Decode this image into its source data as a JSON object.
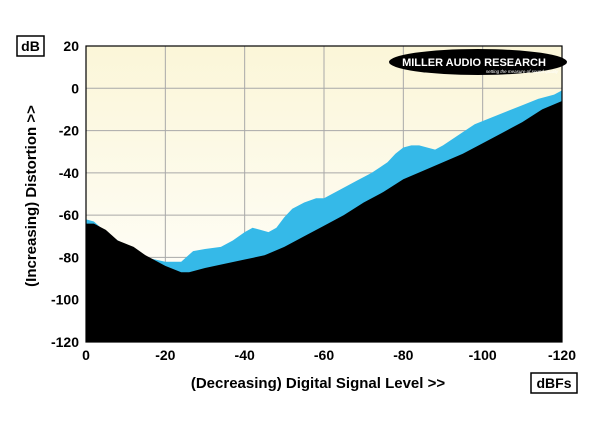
{
  "chart_data": {
    "type": "area",
    "xlabel": "(Decreasing) Digital Signal Level >>",
    "ylabel": "(Increasing) Distortion >>",
    "x_unit": "dBFs",
    "y_unit": "dB",
    "xlim": [
      0,
      -120
    ],
    "ylim": [
      -120,
      20
    ],
    "x_ticks": [
      0,
      -20,
      -40,
      -60,
      -80,
      -100,
      -120
    ],
    "y_ticks": [
      20,
      0,
      -20,
      -40,
      -60,
      -80,
      -100,
      -120
    ],
    "grid": true,
    "series": [
      {
        "name": "",
        "color": "#35b9e8",
        "x": [
          0,
          -2,
          -5,
          -8,
          -12,
          -15,
          -20,
          -24,
          -27,
          -30,
          -34,
          -37,
          -40,
          -42,
          -44,
          -46,
          -48,
          -50,
          -52,
          -55,
          -58,
          -60,
          -64,
          -68,
          -72,
          -76,
          -78,
          -80,
          -82,
          -84,
          -86,
          -88,
          -90,
          -94,
          -98,
          -102,
          -106,
          -110,
          -114,
          -118,
          -120
        ],
        "y": [
          -62,
          -63,
          -68,
          -72,
          -76,
          -80,
          -82,
          -82,
          -77,
          -76,
          -75,
          -72,
          -68,
          -66,
          -67,
          -68,
          -66,
          -61,
          -57,
          -54,
          -52,
          -52,
          -48,
          -44,
          -40,
          -35,
          -31,
          -28,
          -27,
          -27,
          -28,
          -29,
          -27,
          -22,
          -17,
          -14,
          -11,
          -8,
          -5,
          -3,
          -1
        ]
      },
      {
        "name": "",
        "color": "#000000",
        "x": [
          0,
          -2,
          -5,
          -8,
          -12,
          -15,
          -20,
          -24,
          -26,
          -30,
          -35,
          -40,
          -45,
          -50,
          -55,
          -60,
          -65,
          -70,
          -75,
          -80,
          -85,
          -90,
          -95,
          -100,
          -105,
          -110,
          -115,
          -120
        ],
        "y": [
          -64,
          -64,
          -67,
          -72,
          -75,
          -79,
          -84,
          -87,
          -87,
          -85,
          -83,
          -81,
          -79,
          -75,
          -70,
          -65,
          -60,
          -54,
          -49,
          -43,
          -39,
          -35,
          -31,
          -26,
          -21,
          -16,
          -10,
          -6
        ]
      }
    ]
  },
  "branding": {
    "logo_text": "MILLER AUDIO RESEARCH",
    "logo_tagline": "setting the measure of sound quality"
  }
}
